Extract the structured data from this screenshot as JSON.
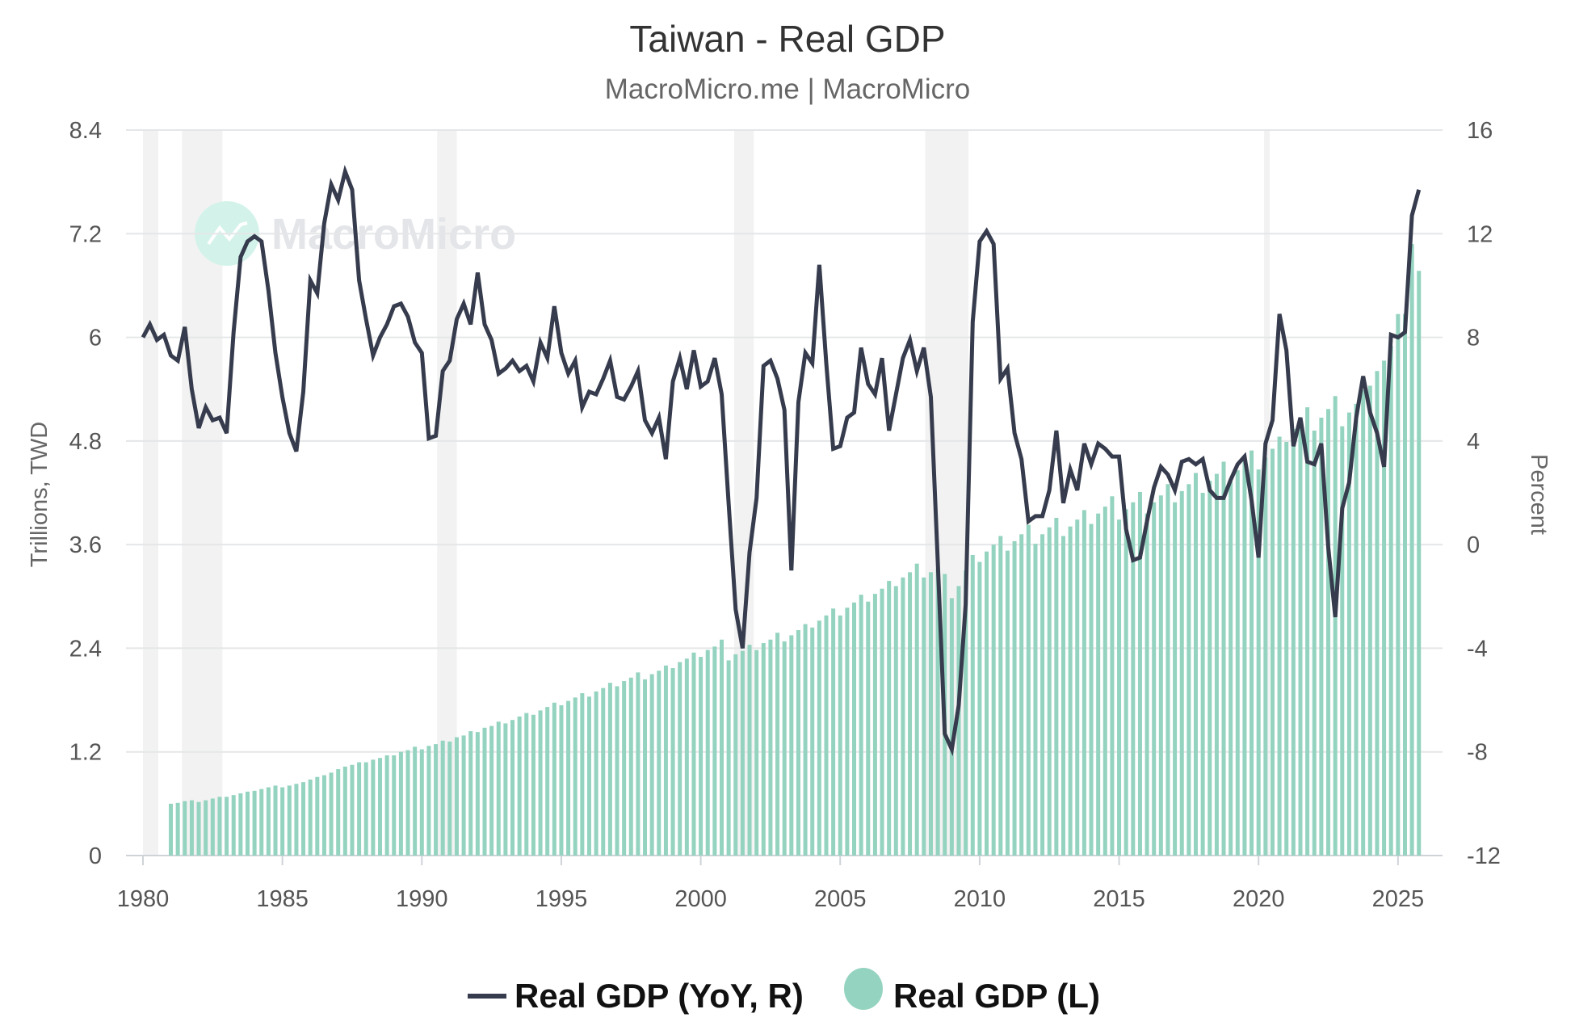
{
  "chart_data": {
    "type": "bar+line",
    "title": "Taiwan - Real GDP",
    "subtitle": "MacroMicro.me | MacroMicro",
    "watermark": "MacroMicro",
    "frequency": "quarterly",
    "x_ticks": [
      "1980",
      "1985",
      "1990",
      "1995",
      "2000",
      "2005",
      "2010",
      "2015",
      "2020",
      "2025"
    ],
    "xlim": [
      1980,
      2026.2
    ],
    "left_axis": {
      "label": "Trillions, TWD",
      "ylim": [
        0,
        8.4
      ],
      "ticks": [
        "0",
        "1.2",
        "2.4",
        "3.6",
        "4.8",
        "6",
        "7.2",
        "8.4"
      ]
    },
    "right_axis": {
      "label": "Percent",
      "ylim": [
        -12,
        16
      ],
      "ticks": [
        "-12",
        "-8",
        "-4",
        "0",
        "4",
        "8",
        "12",
        "16"
      ]
    },
    "grid": true,
    "legend_position": "bottom",
    "shaded_periods": [
      [
        1980.0,
        1980.55
      ],
      [
        1981.4,
        1982.85
      ],
      [
        1990.55,
        1991.25
      ],
      [
        2001.2,
        2001.9
      ],
      [
        2008.05,
        2009.6
      ],
      [
        2020.2,
        2020.4
      ]
    ],
    "series": [
      {
        "name": "Real GDP (YoY, R)",
        "type": "line",
        "axis": "right",
        "color": "#363c4d",
        "start": "1980Q1",
        "values": [
          8.0,
          8.5,
          7.9,
          8.1,
          7.3,
          7.1,
          8.4,
          6.0,
          4.5,
          5.3,
          4.8,
          4.9,
          4.3,
          8.2,
          11.1,
          11.7,
          11.9,
          11.7,
          9.8,
          7.4,
          5.7,
          4.3,
          3.6,
          5.9,
          10.2,
          9.7,
          12.4,
          13.9,
          13.3,
          14.4,
          13.7,
          10.2,
          8.7,
          7.3,
          8.0,
          8.5,
          9.2,
          9.3,
          8.8,
          7.8,
          7.4,
          4.1,
          4.2,
          6.7,
          7.1,
          8.7,
          9.3,
          8.5,
          10.5,
          8.5,
          7.9,
          6.6,
          6.8,
          7.1,
          6.7,
          6.9,
          6.3,
          7.8,
          7.2,
          9.2,
          7.4,
          6.6,
          7.1,
          5.3,
          5.9,
          5.8,
          6.4,
          7.1,
          5.7,
          5.6,
          6.1,
          6.7,
          4.8,
          4.3,
          4.9,
          3.3,
          6.3,
          7.2,
          6.0,
          7.5,
          6.1,
          6.3,
          7.2,
          5.8,
          1.6,
          -2.5,
          -4.0,
          -0.3,
          1.8,
          6.9,
          7.1,
          6.4,
          5.2,
          -1.0,
          5.5,
          7.4,
          7.0,
          10.8,
          7.0,
          3.7,
          3.8,
          4.9,
          5.1,
          7.6,
          6.2,
          5.8,
          7.2,
          4.4,
          5.8,
          7.2,
          7.9,
          6.7,
          7.6,
          5.7,
          -0.7,
          -7.3,
          -7.9,
          -6.2,
          -2.3,
          8.6,
          11.7,
          12.1,
          11.6,
          6.4,
          6.8,
          4.3,
          3.3,
          0.9,
          1.1,
          1.1,
          2.1,
          4.4,
          1.6,
          2.9,
          2.1,
          3.9,
          3.1,
          3.9,
          3.7,
          3.4,
          3.4,
          0.6,
          -0.6,
          -0.5,
          0.9,
          2.2,
          3.0,
          2.7,
          2.1,
          3.2,
          3.3,
          3.1,
          3.3,
          2.1,
          1.8,
          1.8,
          2.5,
          3.1,
          3.4,
          1.7,
          -0.5,
          3.9,
          4.8,
          8.9,
          7.5,
          3.8,
          4.9,
          3.2,
          3.1,
          3.9,
          -0.1,
          -2.8,
          1.4,
          2.4,
          4.9,
          6.5,
          5.1,
          4.3,
          3.0,
          8.1,
          8.0,
          8.2,
          12.7,
          13.7
        ]
      },
      {
        "name": "Real GDP (L)",
        "type": "bar",
        "axis": "left",
        "color": "#94d3bf",
        "start": "1981Q1",
        "values": [
          0.6,
          0.61,
          0.63,
          0.64,
          0.62,
          0.64,
          0.66,
          0.68,
          0.68,
          0.7,
          0.72,
          0.74,
          0.75,
          0.77,
          0.79,
          0.81,
          0.79,
          0.81,
          0.83,
          0.85,
          0.88,
          0.91,
          0.93,
          0.96,
          1.0,
          1.03,
          1.05,
          1.08,
          1.08,
          1.11,
          1.13,
          1.16,
          1.16,
          1.2,
          1.22,
          1.26,
          1.23,
          1.27,
          1.29,
          1.33,
          1.32,
          1.37,
          1.39,
          1.44,
          1.43,
          1.48,
          1.5,
          1.55,
          1.53,
          1.57,
          1.61,
          1.65,
          1.63,
          1.68,
          1.72,
          1.77,
          1.74,
          1.79,
          1.83,
          1.88,
          1.84,
          1.9,
          1.94,
          2.0,
          1.96,
          2.02,
          2.06,
          2.12,
          2.04,
          2.1,
          2.14,
          2.2,
          2.17,
          2.24,
          2.28,
          2.35,
          2.3,
          2.38,
          2.42,
          2.5,
          2.26,
          2.33,
          2.37,
          2.44,
          2.38,
          2.46,
          2.5,
          2.58,
          2.48,
          2.55,
          2.61,
          2.68,
          2.64,
          2.72,
          2.78,
          2.86,
          2.78,
          2.87,
          2.93,
          3.02,
          2.94,
          3.03,
          3.09,
          3.18,
          3.12,
          3.22,
          3.28,
          3.38,
          3.22,
          3.28,
          3.32,
          3.26,
          2.98,
          3.12,
          3.3,
          3.48,
          3.4,
          3.52,
          3.6,
          3.7,
          3.53,
          3.64,
          3.72,
          3.83,
          3.61,
          3.72,
          3.8,
          3.91,
          3.7,
          3.81,
          3.89,
          4.0,
          3.84,
          3.96,
          4.04,
          4.16,
          3.89,
          4.01,
          4.09,
          4.21,
          3.96,
          4.09,
          4.17,
          4.3,
          4.09,
          4.22,
          4.3,
          4.43,
          4.2,
          4.34,
          4.42,
          4.56,
          4.33,
          4.46,
          4.56,
          4.69,
          4.47,
          4.61,
          4.71,
          4.85,
          4.79,
          4.94,
          5.04,
          5.19,
          4.92,
          5.07,
          5.17,
          5.32,
          4.97,
          5.13,
          5.23,
          5.39,
          5.44,
          5.61,
          5.73,
          5.9,
          6.27,
          6.27,
          7.08,
          6.77
        ]
      }
    ]
  }
}
